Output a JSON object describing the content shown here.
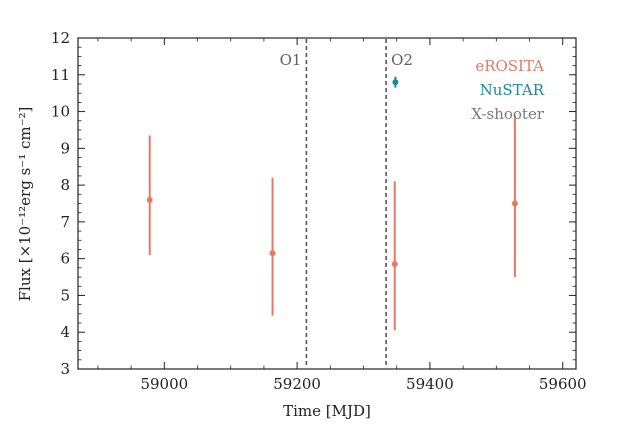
{
  "chart_data": {
    "type": "scatter",
    "title": "",
    "xlabel": "Time [MJD]",
    "ylabel": "Flux [×10⁻¹²erg s⁻¹ cm⁻²]",
    "xlim": [
      58870,
      59620
    ],
    "ylim": [
      3,
      12
    ],
    "xticks": [
      59000,
      59200,
      59400,
      59600
    ],
    "yticks": [
      3,
      4,
      5,
      6,
      7,
      8,
      9,
      10,
      11,
      12
    ],
    "grid": false,
    "legend_position": "top-right",
    "vertical_lines": [
      {
        "label": "O1",
        "x": 59214,
        "color": "#555555"
      },
      {
        "label": "O2",
        "x": 59334,
        "color": "#555555"
      }
    ],
    "series": [
      {
        "name": "eROSITA",
        "color": "#e57a63",
        "points": [
          {
            "x": 58978,
            "y": 7.6,
            "ylow": 6.1,
            "yhigh": 9.35
          },
          {
            "x": 59163,
            "y": 6.15,
            "ylow": 4.45,
            "yhigh": 8.2
          },
          {
            "x": 59347,
            "y": 5.85,
            "ylow": 4.05,
            "yhigh": 8.1
          },
          {
            "x": 59528,
            "y": 7.5,
            "ylow": 5.5,
            "yhigh": 9.9
          }
        ]
      },
      {
        "name": "NuSTAR",
        "color": "#1a8a9a",
        "points": [
          {
            "x": 59348,
            "y": 10.8,
            "ylow": 10.65,
            "yhigh": 10.95
          }
        ]
      },
      {
        "name": "X-shooter",
        "color": "#7a7a7a",
        "points": []
      }
    ]
  }
}
